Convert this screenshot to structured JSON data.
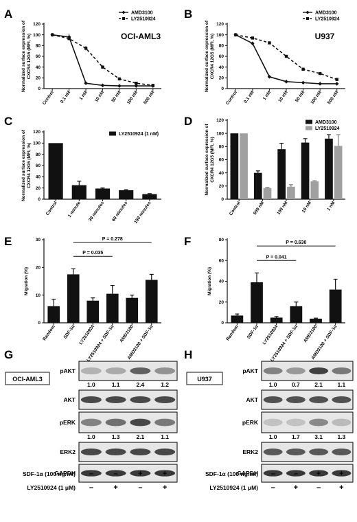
{
  "panel_labels": [
    "A",
    "B",
    "C",
    "D",
    "E",
    "F",
    "G",
    "H"
  ],
  "chart_data": [
    {
      "id": "A",
      "type": "line",
      "title": "OCI-AML3",
      "ylabel": "Normalized surface expression of CXCR4 12G5 (MFI, %)",
      "categories": [
        "Control",
        "0.1 nM",
        "1 nM",
        "10 nM",
        "50 nM",
        "100 nM",
        "500 nM"
      ],
      "ylim": [
        0,
        120
      ],
      "yticks": [
        0,
        20,
        40,
        60,
        80,
        100,
        120
      ],
      "series": [
        {
          "name": "AMD3100",
          "style": "solid",
          "marker": "diamond",
          "values": [
            100,
            96,
            10,
            6,
            5,
            5,
            5
          ],
          "errors": [
            2,
            6,
            1,
            1,
            1,
            1,
            1
          ]
        },
        {
          "name": "LY2510924",
          "style": "dashed",
          "marker": "square",
          "values": [
            100,
            93,
            75,
            40,
            18,
            10,
            6
          ],
          "errors": [
            1,
            3,
            4,
            3,
            1,
            1,
            1
          ]
        }
      ]
    },
    {
      "id": "B",
      "type": "line",
      "title": "U937",
      "ylabel": "Normalized surface expression of CXCR4 12G5 (MFI, %)",
      "categories": [
        "Control",
        "0.1 nM",
        "1 nM",
        "10 nM",
        "50 nM",
        "100 nM",
        "500 nM"
      ],
      "ylim": [
        0,
        120
      ],
      "yticks": [
        0,
        20,
        40,
        60,
        80,
        100,
        120
      ],
      "series": [
        {
          "name": "AMD3100",
          "style": "solid",
          "marker": "diamond",
          "values": [
            100,
            84,
            22,
            13,
            11,
            9,
            9
          ],
          "errors": [
            1,
            2,
            1,
            1,
            1,
            1,
            1
          ]
        },
        {
          "name": "LY2510924",
          "style": "dashed",
          "marker": "square",
          "values": [
            100,
            94,
            85,
            60,
            36,
            28,
            17
          ],
          "errors": [
            1,
            2,
            2,
            2,
            2,
            2,
            1
          ]
        }
      ]
    },
    {
      "id": "C",
      "type": "bar",
      "ylabel": "Normalized surface expression of CXCR4 12G5 (MFI, %)",
      "categories": [
        "Control",
        "1 minute",
        "30 minutes",
        "60 minutes",
        "150 minutes"
      ],
      "ylim": [
        0,
        120
      ],
      "yticks": [
        0,
        20,
        40,
        60,
        80,
        100,
        120
      ],
      "series": [
        {
          "name": "LY2510924 (1 nM)",
          "color": "#111111",
          "values": [
            100,
            25,
            19,
            16,
            9
          ],
          "errors": [
            0,
            7,
            1,
            1,
            1
          ]
        }
      ]
    },
    {
      "id": "D",
      "type": "bar",
      "ylabel": "Normalized surface expression of CXCR4 12G5 (MFI, %)",
      "categories": [
        "Control",
        "500 nM",
        "100 nM",
        "10 nM",
        "1 nM"
      ],
      "ylim": [
        0,
        120
      ],
      "yticks": [
        0,
        20,
        40,
        60,
        80,
        100,
        120
      ],
      "series": [
        {
          "name": "AMD3100",
          "color": "#111111",
          "values": [
            100,
            40,
            76,
            86,
            92
          ],
          "errors": [
            0,
            3,
            9,
            6,
            6
          ]
        },
        {
          "name": "LY2510924",
          "color": "#a0a0a0",
          "values": [
            100,
            17,
            19,
            27,
            81
          ],
          "errors": [
            0,
            1,
            3,
            1,
            17
          ]
        }
      ]
    },
    {
      "id": "E",
      "type": "bar",
      "ylabel": "Migration (%)",
      "categories": [
        "Random",
        "SDF-1α",
        "LY2510924",
        "LY2510924 + SDF-1α",
        "AMD3100",
        "AMD3100 + SDF-1α"
      ],
      "ylim": [
        0,
        30
      ],
      "yticks": [
        0,
        10,
        20,
        30
      ],
      "series": [
        {
          "name": "",
          "color": "#111111",
          "values": [
            6,
            17.5,
            8,
            10.5,
            9,
            15.5
          ],
          "errors": [
            2.5,
            2,
            1,
            3,
            1,
            2
          ]
        }
      ],
      "annotations": [
        {
          "text": "P = 0.035",
          "from": 1,
          "to": 3,
          "y": 24
        },
        {
          "text": "P = 0.278",
          "from": 1,
          "to": 5,
          "y": 29
        }
      ]
    },
    {
      "id": "F",
      "type": "bar",
      "ylabel": "Migration (%)",
      "categories": [
        "Random",
        "SDF-1α",
        "LY2510924",
        "LY2510924 + SDF-1α",
        "AMD3100",
        "AMD3100 + SDF-1α"
      ],
      "ylim": [
        0,
        80
      ],
      "yticks": [
        0,
        20,
        40,
        60,
        80
      ],
      "series": [
        {
          "name": "",
          "color": "#111111",
          "values": [
            7,
            39,
            5,
            16,
            4,
            32
          ],
          "errors": [
            1.5,
            9,
            1,
            4,
            0.5,
            10
          ]
        }
      ],
      "annotations": [
        {
          "text": "P = 0.041",
          "from": 1,
          "to": 3,
          "y": 60
        },
        {
          "text": "P = 0.630",
          "from": 1,
          "to": 5,
          "y": 74
        }
      ]
    }
  ],
  "westerns": {
    "G": {
      "cell_line": "OCI-AML3",
      "blots": [
        {
          "label": "pAKT",
          "quant": [
            "1.0",
            "1.1",
            "2.4",
            "1.2"
          ]
        },
        {
          "label": "AKT",
          "quant": []
        },
        {
          "label": "pERK",
          "quant": [
            "1.0",
            "1.3",
            "2.1",
            "1.1"
          ]
        },
        {
          "label": "ERK2",
          "quant": []
        },
        {
          "label": "GAPDH",
          "quant": []
        }
      ],
      "band_levels": [
        [
          0.15,
          0.2,
          0.65,
          0.35
        ],
        [
          0.8,
          0.8,
          0.8,
          0.8
        ],
        [
          0.45,
          0.55,
          0.8,
          0.5
        ],
        [
          0.8,
          0.8,
          0.8,
          0.8
        ],
        [
          0.9,
          0.9,
          0.9,
          0.9
        ]
      ]
    },
    "H": {
      "cell_line": "U937",
      "blots": [
        {
          "label": "pAKT",
          "quant": [
            "1.0",
            "0.7",
            "2.1",
            "1.1"
          ]
        },
        {
          "label": "AKT",
          "quant": []
        },
        {
          "label": "pERK",
          "quant": [
            "1.0",
            "1.7",
            "3.1",
            "1.3"
          ]
        },
        {
          "label": "ERK2",
          "quant": []
        },
        {
          "label": "GAPDH",
          "quant": []
        }
      ],
      "band_levels": [
        [
          0.45,
          0.3,
          0.85,
          0.5
        ],
        [
          0.75,
          0.75,
          0.75,
          0.75
        ],
        [
          0.05,
          0.05,
          0.4,
          0.1
        ],
        [
          0.7,
          0.7,
          0.7,
          0.7
        ],
        [
          0.9,
          0.9,
          0.9,
          0.9
        ]
      ]
    }
  },
  "conditions": [
    {
      "label": "SDF-1α (100 ng/ml)",
      "signs": [
        "–",
        "–",
        "+",
        "+"
      ]
    },
    {
      "label": "LY2510924 (1 μM)",
      "signs": [
        "–",
        "+",
        "–",
        "+"
      ]
    }
  ]
}
